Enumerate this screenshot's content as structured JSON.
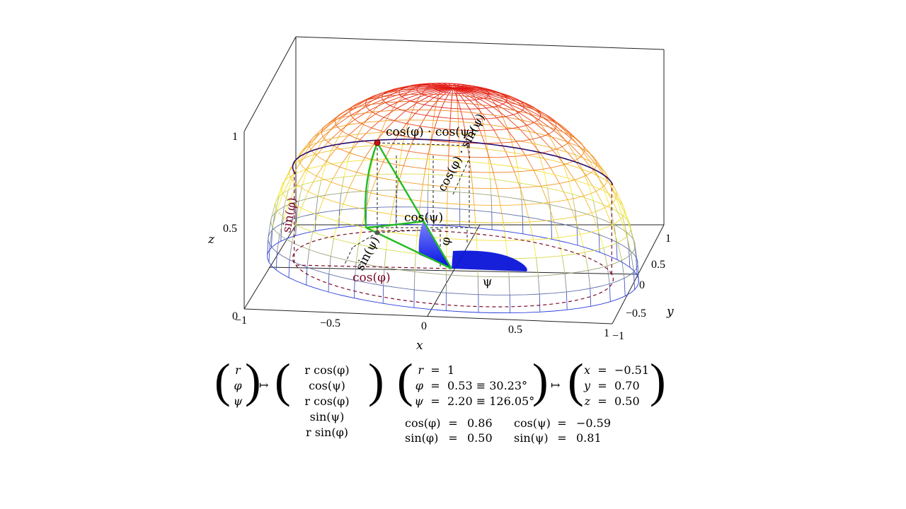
{
  "axes": {
    "x_ticks": [
      "−1",
      "−0.5",
      "0",
      "0.5",
      "1"
    ],
    "y_ticks": [
      "−1",
      "−0.5",
      "0",
      "0.5",
      "1"
    ],
    "z_ticks": [
      "0",
      "0.5",
      "1"
    ],
    "x_label": "x",
    "y_label": "y",
    "z_label": "z"
  },
  "annotations": {
    "top": "cos(φ) · cos(ψ)",
    "cos_phi_sin_psi": "cos(φ) · sin(ψ)",
    "sin_phi": "sin(φ)",
    "sin_psi": "sin(ψ)",
    "cos_psi": "cos(ψ)",
    "cos_phi": "cos(φ)",
    "phi": "φ",
    "psi": "ψ"
  },
  "formulas": {
    "map_arrow": "↦",
    "lhs": [
      "r",
      "φ",
      "ψ"
    ],
    "rhs": [
      "r cos(φ) cos(ψ)",
      "r cos(φ) sin(ψ)",
      "r sin(φ)"
    ],
    "params": [
      {
        "var": "r",
        "eq": "=",
        "val": "1"
      },
      {
        "var": "φ",
        "eq": "=",
        "val": "0.53 ≡ 30.23°"
      },
      {
        "var": "ψ",
        "eq": "=",
        "val": "2.20 ≡ 126.05°"
      }
    ],
    "result": [
      {
        "var": "x",
        "eq": "=",
        "val": "−0.51"
      },
      {
        "var": "y",
        "eq": "=",
        "val": "0.70"
      },
      {
        "var": "z",
        "eq": "=",
        "val": "0.50"
      }
    ],
    "trig_left": [
      {
        "lhs": "cos(φ)",
        "eq": "=",
        "val": "0.86"
      },
      {
        "lhs": "sin(φ)",
        "eq": "=",
        "val": "0.50"
      }
    ],
    "trig_right": [
      {
        "lhs": "cos(ψ)",
        "eq": "=",
        "val": "−0.59"
      },
      {
        "lhs": "sin(ψ)",
        "eq": "=",
        "val": "0.81"
      }
    ]
  },
  "colors": {
    "green_path": "#22bb22",
    "point": "#cc1111",
    "dashed_red": "#7a0a2a",
    "blue_fill": "#0a14d8",
    "equator_line": "#2a0a6a"
  }
}
